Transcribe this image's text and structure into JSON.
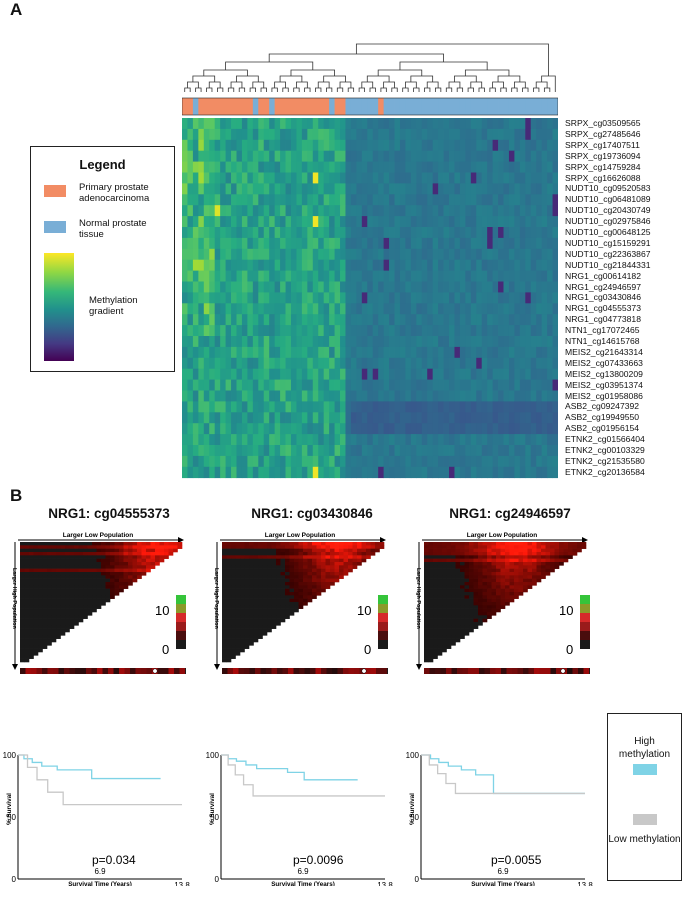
{
  "panelA": {
    "letter": "A",
    "legend": {
      "title": "Legend",
      "items": [
        {
          "label": "Primary prostate adenocarcinoma",
          "color": "#f28c64"
        },
        {
          "label": "Normal prostate tissue",
          "color": "#79aed6"
        }
      ],
      "gradient_label": "Methylation gradient",
      "gradient_colors": [
        "#fde725",
        "#5ec962",
        "#21918c",
        "#3b528b",
        "#440154"
      ]
    },
    "probes": [
      "SRPX_cg03509565",
      "SRPX_cg27485646",
      "SRPX_cg17407511",
      "SRPX_cg19736094",
      "SRPX_cg14759284",
      "SRPX_cg16626088",
      "NUDT10_cg09520583",
      "NUDT10_cg06481089",
      "NUDT10_cg20430749",
      "NUDT10_cg02975846",
      "NUDT10_cg00648125",
      "NUDT10_cg15159291",
      "NUDT10_cg22363867",
      "NUDT10_cg21844331",
      "NRG1_cg00614182",
      "NRG1_cg24946597",
      "NRG1_cg03430846",
      "NRG1_cg04555373",
      "NRG1_cg04773818",
      "NTN1_cg17072465",
      "NTN1_cg14615768",
      "MEIS2_cg21643314",
      "MEIS2_cg07433663",
      "MEIS2_cg13800209",
      "MEIS2_cg03951374",
      "MEIS2_cg01958086",
      "ASB2_cg09247392",
      "ASB2_cg19949550",
      "ASB2_cg01956154",
      "ETNK2_cg01566404",
      "ETNK2_cg00103329",
      "ETNK2_cg21535580",
      "ETNK2_cg20136584"
    ]
  },
  "panelB": {
    "letter": "B",
    "heat_axis_top": "Larger Low Population",
    "heat_axis_left": "Larger High Population",
    "scale_max": "10",
    "scale_min": "0",
    "km_ylabel": "% Survival",
    "km_xlabel": "Survival Time (Years)",
    "km_legend": {
      "high": "High methylation",
      "low": "Low methylation",
      "high_color": "#7fd3e6",
      "low_color": "#c8c8c8"
    }
  },
  "chart_data": [
    {
      "type": "heatmap",
      "title": "",
      "rows": 33,
      "columns": 69,
      "column_groups": {
        "tumor": 30,
        "normal": 39
      },
      "note_rows": "probe labels as listed in panelA.probes"
    },
    {
      "type": "line",
      "title": "NRG1: cg04555373",
      "xlabel": "Survival Time (Years)",
      "ylabel": "% Survival",
      "xlim": [
        0,
        13.8
      ],
      "ylim": [
        0,
        100
      ],
      "xticks": [
        "6.9",
        "13.8"
      ],
      "yticks": [
        "0",
        "50",
        "100"
      ],
      "annotation": "p=0.034",
      "series": [
        {
          "name": "High methylation",
          "x": [
            0,
            0.5,
            1.2,
            2.0,
            3.3,
            4.6,
            6.2,
            12.0
          ],
          "y": [
            100,
            97,
            94,
            91,
            88,
            88,
            81,
            81
          ]
        },
        {
          "name": "Low methylation",
          "x": [
            0,
            0.8,
            1.6,
            2.5,
            3.8,
            13.8
          ],
          "y": [
            100,
            90,
            80,
            70,
            60,
            60
          ]
        }
      ]
    },
    {
      "type": "line",
      "title": "NRG1: cg03430846",
      "xlabel": "Survival Time (Years)",
      "ylabel": "% Survival",
      "xlim": [
        0,
        13.8
      ],
      "ylim": [
        0,
        100
      ],
      "xticks": [
        "6.9",
        "13.8"
      ],
      "yticks": [
        "0",
        "50",
        "100"
      ],
      "annotation": "p=0.0096",
      "series": [
        {
          "name": "High methylation",
          "x": [
            0,
            0.6,
            1.3,
            2.1,
            3.0,
            4.1,
            5.6,
            7.0,
            11.5
          ],
          "y": [
            100,
            97,
            95,
            92,
            89,
            89,
            86,
            80,
            80
          ]
        },
        {
          "name": "Low methylation",
          "x": [
            0,
            0.6,
            1.2,
            1.9,
            2.7,
            13.8
          ],
          "y": [
            100,
            92,
            84,
            76,
            67,
            67
          ]
        }
      ]
    },
    {
      "type": "line",
      "title": "NRG1: cg24946597",
      "xlabel": "Survival Time (Years)",
      "ylabel": "% Survival",
      "xlim": [
        0,
        13.8
      ],
      "ylim": [
        0,
        100
      ],
      "xticks": [
        "6.9",
        "13.8"
      ],
      "yticks": [
        "0",
        "50",
        "100"
      ],
      "annotation": "p=0.0055",
      "series": [
        {
          "name": "High methylation",
          "x": [
            0,
            0.8,
            1.5,
            2.3,
            3.4,
            4.6,
            6.1,
            13.8
          ],
          "y": [
            100,
            97,
            94,
            91,
            88,
            84,
            69,
            69
          ]
        },
        {
          "name": "Low methylation",
          "x": [
            0,
            0.7,
            1.4,
            2.1,
            2.9,
            13.8
          ],
          "y": [
            100,
            92,
            85,
            77,
            69,
            69
          ]
        }
      ]
    }
  ]
}
